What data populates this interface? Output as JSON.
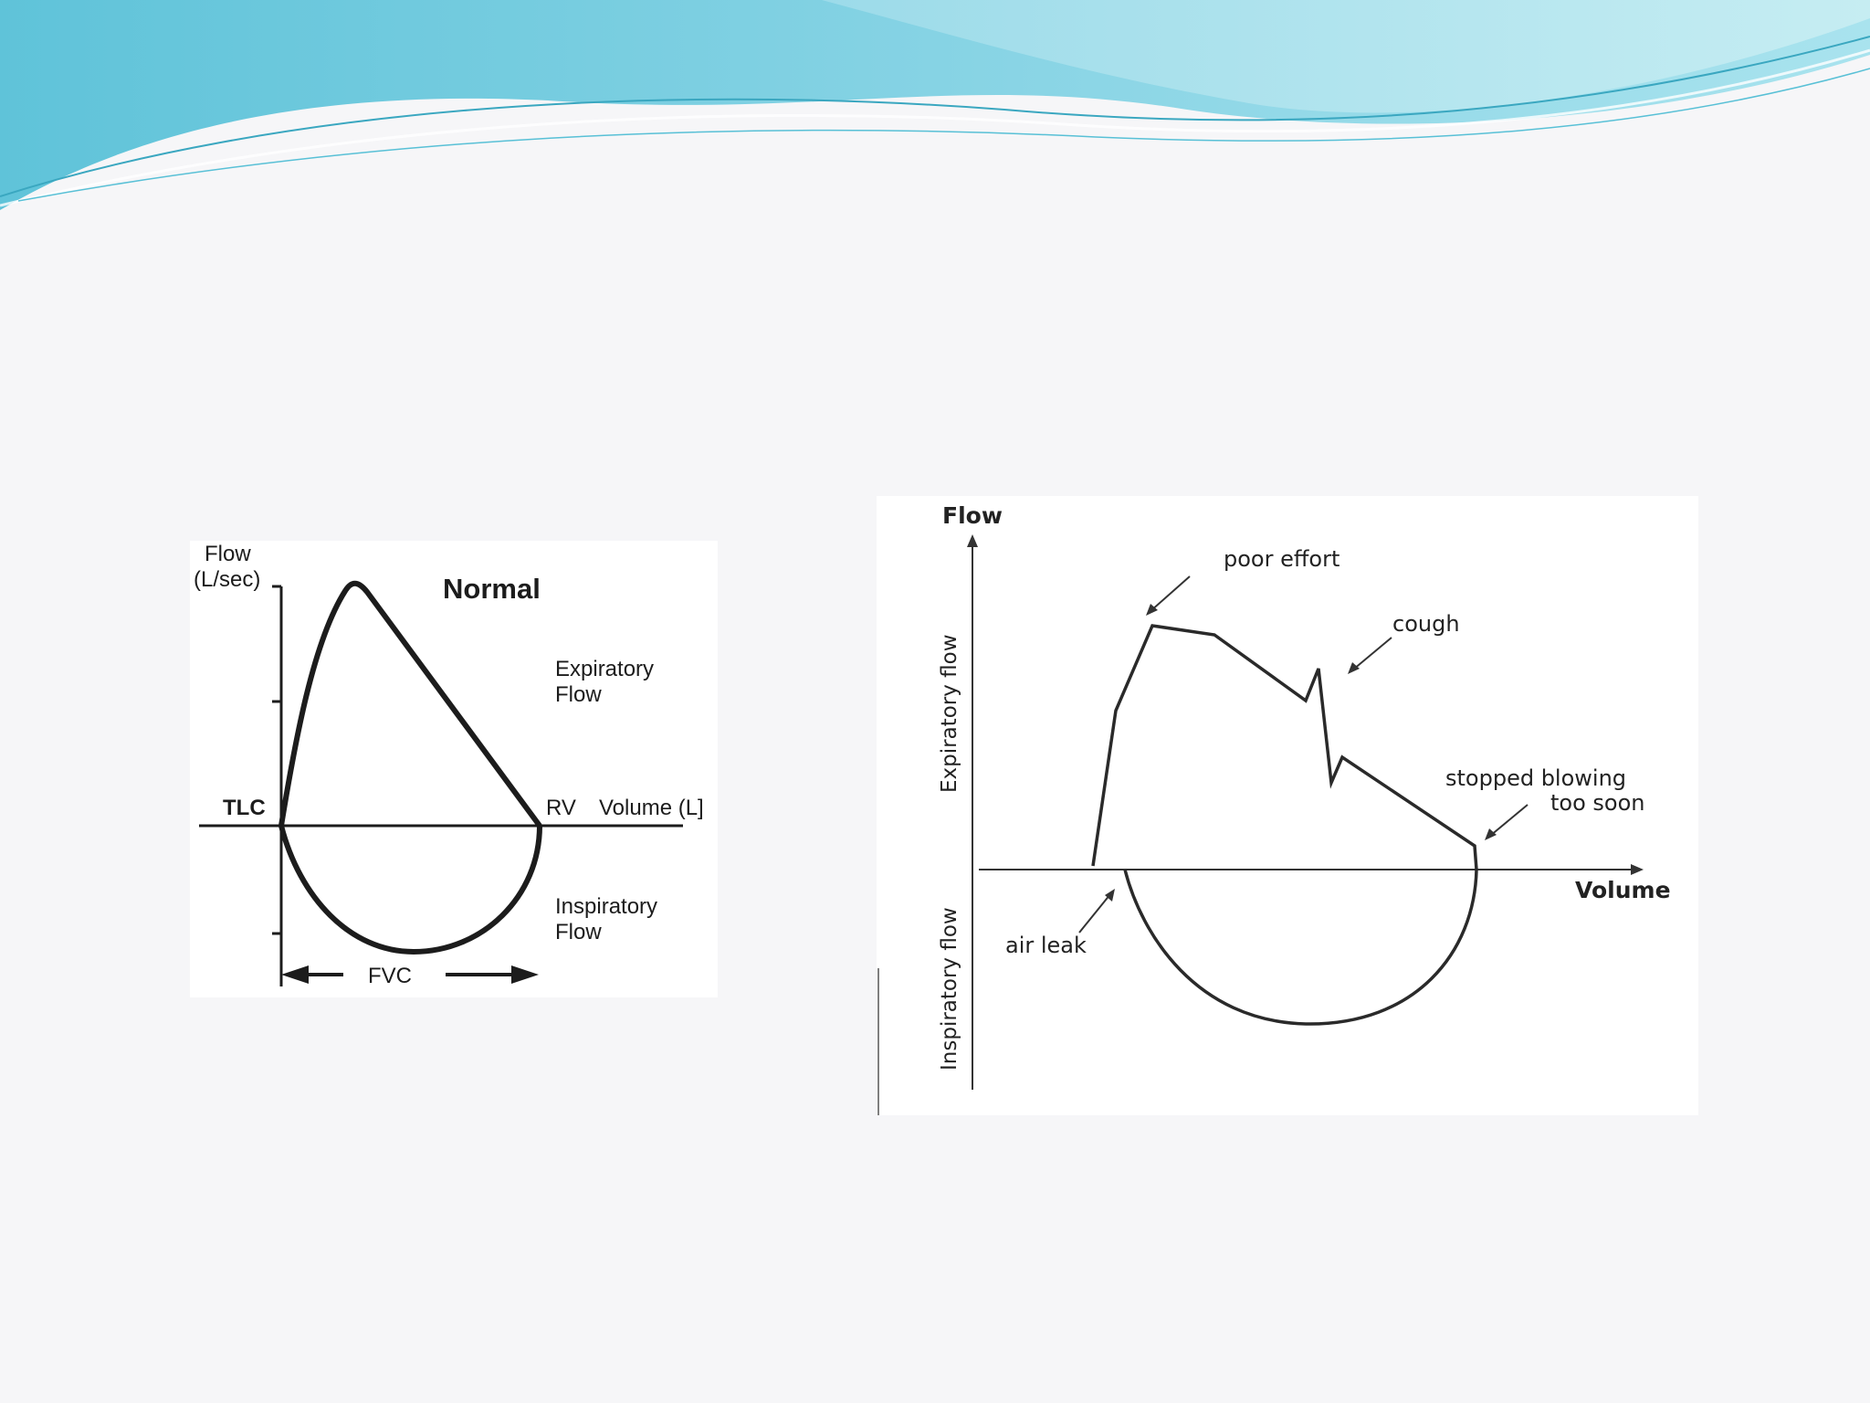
{
  "colors": {
    "background": "#f6f6f8",
    "wave_light": "#bfe9f0",
    "wave_mid": "#86d3e4",
    "wave_dark": "#5fc3d9",
    "ink": "#1c1c1c"
  },
  "normal_loop": {
    "title": "Normal",
    "y_label_line1": "Flow",
    "y_label_line2": "(L/sec)",
    "x_label": "Volume (L]",
    "left_point": "TLC",
    "right_point": "RV",
    "expiratory_line1": "Expiratory",
    "expiratory_line2": "Flow",
    "inspiratory_line1": "Inspiratory",
    "inspiratory_line2": "Flow",
    "span_label": "FVC"
  },
  "error_loop": {
    "y_label": "Flow",
    "x_label": "Volume",
    "upper_axis_label": "Expiratory flow",
    "lower_axis_label": "Inspiratory flow",
    "annotation_poor_effort": "poor effort",
    "annotation_cough": "cough",
    "annotation_stopped_line1": "stopped blowing",
    "annotation_stopped_line2": "too soon",
    "annotation_air_leak": "air leak"
  }
}
